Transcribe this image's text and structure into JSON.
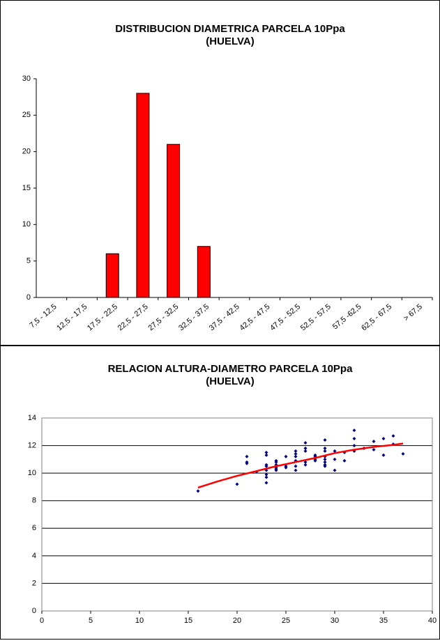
{
  "chart_data": [
    {
      "type": "bar",
      "title_lines": [
        "DISTRIBUCION DIAMETRICA PARCELA 10Ppa",
        "(HUELVA)"
      ],
      "categories": [
        "7,5 - 12,5",
        "12,5 - 17,5",
        "17,5 - 22,5",
        "22,5 - 27,5",
        "27,5 - 32,5",
        "32,5 - 37,5",
        "37,5 - 42,5",
        "42,5 - 47,5",
        "47,5 - 52,5",
        "52,5 - 57,5",
        "57,5 -62,5",
        "62,5 - 67,5",
        "> 67,5"
      ],
      "values": [
        0,
        0,
        6,
        28,
        21,
        7,
        0,
        0,
        0,
        0,
        0,
        0,
        0
      ],
      "color": "#ff0000",
      "ylim": [
        0,
        30
      ],
      "yticks": [
        0,
        5,
        10,
        15,
        20,
        25,
        30
      ],
      "grid": false
    },
    {
      "type": "scatter",
      "title_lines": [
        "RELACION ALTURA-DIAMETRO PARCELA 10Ppa",
        "(HUELVA)"
      ],
      "xlim": [
        0,
        40
      ],
      "xticks": [
        0,
        5,
        10,
        15,
        20,
        25,
        30,
        35,
        40
      ],
      "ylim": [
        0,
        14
      ],
      "yticks": [
        0,
        2,
        4,
        6,
        8,
        10,
        12,
        14
      ],
      "grid": true,
      "series": [
        {
          "color": "#000080",
          "mode": "points",
          "x": [
            16,
            20,
            21,
            21,
            21,
            22,
            23,
            23,
            23,
            23,
            23,
            23,
            23,
            23,
            24,
            24,
            24,
            24,
            24,
            24,
            25,
            25,
            25,
            26,
            26,
            26,
            26,
            26,
            26,
            27,
            27,
            27,
            27,
            27,
            28,
            28,
            28,
            28,
            29,
            29,
            29,
            29,
            29,
            29,
            29,
            29,
            30,
            30,
            30,
            31,
            31,
            32,
            32,
            32,
            32,
            33,
            34,
            34,
            35,
            35,
            36,
            36,
            37
          ],
          "values": [
            8.7,
            9.2,
            11.2,
            10.8,
            10.7,
            10.1,
            11.5,
            11.3,
            10.6,
            10.5,
            10.2,
            9.9,
            9.7,
            9.3,
            10.9,
            10.8,
            10.6,
            10.4,
            10.3,
            10.2,
            11.2,
            10.5,
            10.4,
            11.6,
            11.4,
            11.2,
            10.9,
            10.5,
            10.2,
            12.2,
            11.8,
            11.6,
            10.8,
            10.6,
            11.3,
            11.2,
            11.0,
            10.9,
            12.4,
            11.8,
            11.6,
            11.2,
            11.0,
            10.8,
            10.6,
            10.5,
            11.6,
            11.0,
            10.2,
            11.5,
            10.9,
            13.1,
            12.5,
            12.0,
            11.6,
            11.8,
            12.3,
            11.7,
            12.5,
            11.3,
            12.7,
            12.1,
            11.4
          ]
        },
        {
          "color": "#ff0000",
          "mode": "line",
          "x": [
            16,
            18,
            20,
            22,
            24,
            26,
            28,
            30,
            32,
            34,
            36,
            37
          ],
          "values": [
            8.95,
            9.4,
            9.8,
            10.15,
            10.5,
            10.8,
            11.1,
            11.45,
            11.7,
            11.9,
            12.05,
            12.15
          ]
        }
      ]
    }
  ]
}
